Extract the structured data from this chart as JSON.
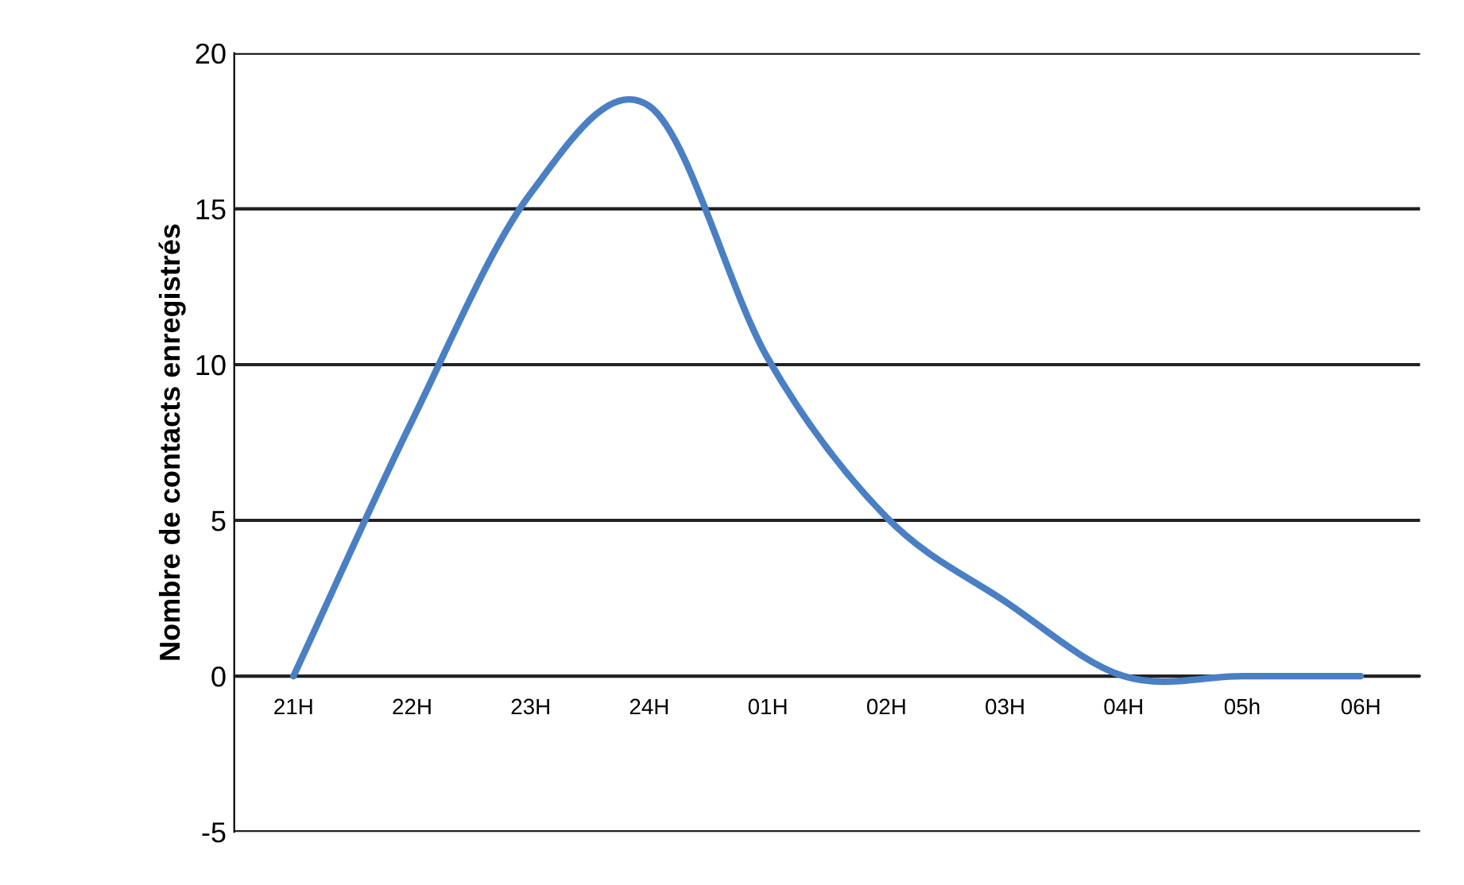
{
  "chart_data": {
    "type": "line",
    "ylabel": "Nombre de contacts enregistrés",
    "categories": [
      "21H",
      "22H",
      "23H",
      "24H",
      "01H",
      "02H",
      "03H",
      "04H",
      "05h",
      "06H"
    ],
    "series": [
      {
        "color": "#4a7fc4",
        "values": [
          0,
          8.2,
          15.5,
          18.3,
          10.2,
          5.1,
          2.4,
          0,
          0,
          0
        ]
      }
    ],
    "ylim": [
      -5,
      20
    ],
    "yticks": [
      -5,
      0,
      5,
      10,
      15,
      20
    ],
    "grid": "y",
    "marker": "none",
    "line_style": "solid"
  }
}
